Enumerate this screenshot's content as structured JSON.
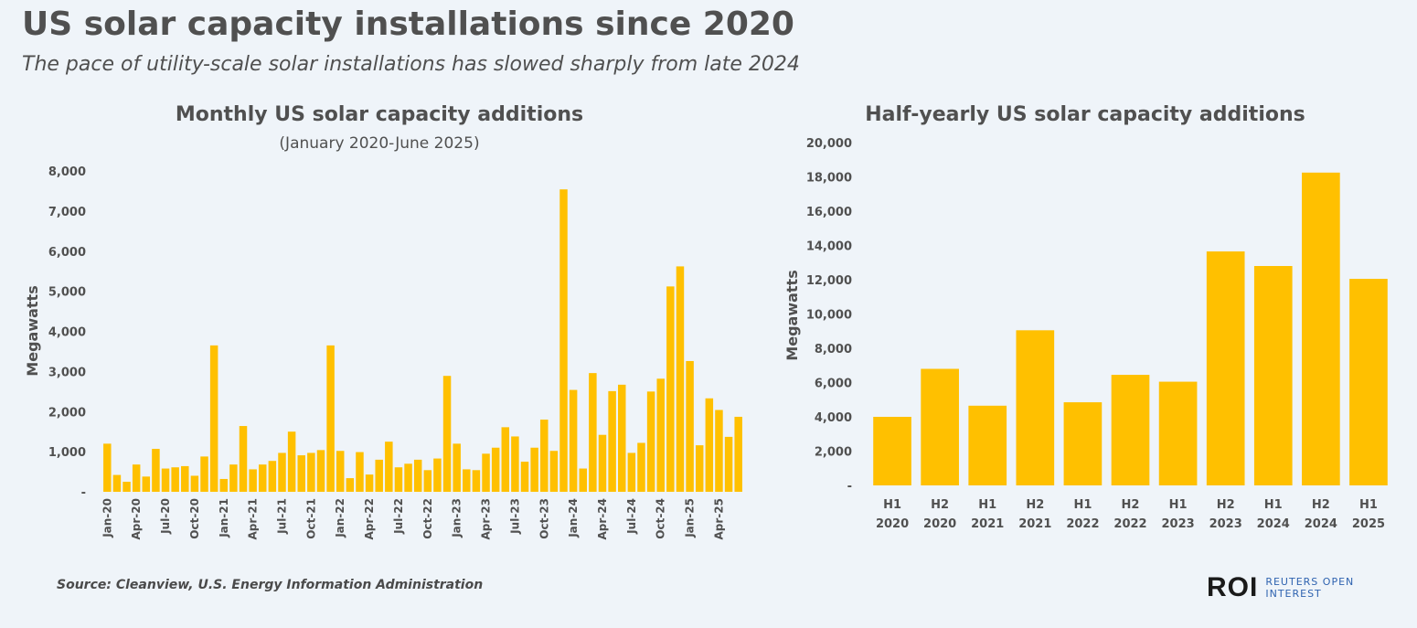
{
  "header": {
    "title": "US solar capacity installations since 2020",
    "subtitle": "The pace of utility-scale solar installations has slowed sharply from late 2024"
  },
  "footer": {
    "source": "Source: Cleanview, U.S. Energy Information Administration",
    "logo_mark": "ROI",
    "logo_text": "REUTERS OPEN\nINTEREST"
  },
  "colors": {
    "bar": "#ffc000",
    "text": "#505050",
    "background": "#eff4f9"
  },
  "chart_data": [
    {
      "type": "bar",
      "title": "Monthly US solar capacity additions",
      "subtitle": "(January 2020-June 2025)",
      "ylabel": "Megawatts",
      "xlabel": "",
      "ylim": [
        0,
        8000
      ],
      "yticks": [
        0,
        1000,
        2000,
        3000,
        4000,
        5000,
        6000,
        7000,
        8000
      ],
      "ytick_labels": [
        "-",
        "1,000",
        "2,000",
        "3,000",
        "4,000",
        "5,000",
        "6,000",
        "7,000",
        "8,000"
      ],
      "categories": [
        "Jan-20",
        "Feb-20",
        "Mar-20",
        "Apr-20",
        "May-20",
        "Jun-20",
        "Jul-20",
        "Aug-20",
        "Sep-20",
        "Oct-20",
        "Nov-20",
        "Dec-20",
        "Jan-21",
        "Feb-21",
        "Mar-21",
        "Apr-21",
        "May-21",
        "Jun-21",
        "Jul-21",
        "Aug-21",
        "Sep-21",
        "Oct-21",
        "Nov-21",
        "Dec-21",
        "Jan-22",
        "Feb-22",
        "Mar-22",
        "Apr-22",
        "May-22",
        "Jun-22",
        "Jul-22",
        "Aug-22",
        "Sep-22",
        "Oct-22",
        "Nov-22",
        "Dec-22",
        "Jan-23",
        "Feb-23",
        "Mar-23",
        "Apr-23",
        "May-23",
        "Jun-23",
        "Jul-23",
        "Aug-23",
        "Sep-23",
        "Oct-23",
        "Nov-23",
        "Dec-23",
        "Jan-24",
        "Feb-24",
        "Mar-24",
        "Apr-24",
        "May-24",
        "Jun-24",
        "Jul-24",
        "Aug-24",
        "Sep-24",
        "Oct-24",
        "Nov-24",
        "Dec-24",
        "Jan-25",
        "Feb-25",
        "Mar-25",
        "Apr-25",
        "May-25",
        "Jun-25"
      ],
      "tick_labels": [
        "Jan-20",
        "Apr-20",
        "Jul-20",
        "Oct-20",
        "Jan-21",
        "Apr-21",
        "Jul-21",
        "Oct-21",
        "Jan-22",
        "Apr-22",
        "Jul-22",
        "Oct-22",
        "Jan-23",
        "Apr-23",
        "Jul-23",
        "Oct-23",
        "Jan-24",
        "Apr-24",
        "Jul-24",
        "Oct-24",
        "Jan-25",
        "Apr-25"
      ],
      "values": [
        1200,
        420,
        250,
        680,
        380,
        1070,
        580,
        610,
        640,
        400,
        880,
        3650,
        320,
        680,
        1640,
        560,
        680,
        770,
        970,
        1500,
        910,
        970,
        1040,
        3650,
        1020,
        340,
        990,
        430,
        800,
        1250,
        610,
        700,
        800,
        540,
        830,
        2890,
        1200,
        560,
        540,
        950,
        1100,
        1610,
        1380,
        750,
        1100,
        1800,
        1020,
        7540,
        2540,
        580,
        2960,
        1420,
        2510,
        2670,
        970,
        1220,
        2500,
        2820,
        5120,
        5620,
        3260,
        1160,
        2330,
        2040,
        1370,
        1870
      ]
    },
    {
      "type": "bar",
      "title": "Half-yearly US solar capacity additions",
      "ylabel": "Megawatts",
      "xlabel": "",
      "ylim": [
        0,
        20000
      ],
      "yticks": [
        0,
        2000,
        4000,
        6000,
        8000,
        10000,
        12000,
        14000,
        16000,
        18000,
        20000
      ],
      "ytick_labels": [
        "-",
        "2,000",
        "4,000",
        "6,000",
        "8,000",
        "10,000",
        "12,000",
        "14,000",
        "16,000",
        "18,000",
        "20,000"
      ],
      "categories": [
        "H1 2020",
        "H2 2020",
        "H1 2021",
        "H2 2021",
        "H1 2022",
        "H2 2022",
        "H1 2023",
        "H2 2023",
        "H1 2024",
        "H2 2024",
        "H1 2025"
      ],
      "values": [
        4000,
        6800,
        4650,
        9050,
        4850,
        6450,
        6050,
        13650,
        12800,
        18250,
        12050
      ]
    }
  ]
}
